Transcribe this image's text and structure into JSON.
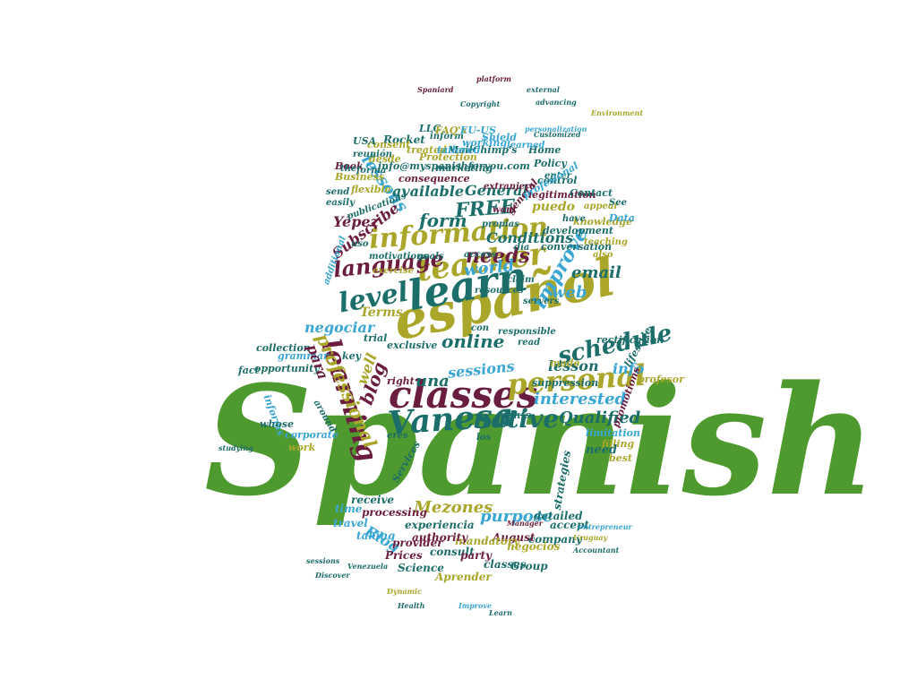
{
  "cloud": {
    "palette": {
      "green": "#4f9a2e",
      "olive": "#a9a62a",
      "teal": "#1c6e6a",
      "maroon": "#6b1d3f",
      "sky": "#3aa6d3"
    },
    "shape": "person silhouette (head + shoulders)",
    "words": [
      {
        "text": "Spanish",
        "color": "green"
      },
      {
        "text": "español",
        "color": "olive"
      },
      {
        "text": "learn",
        "color": "teal"
      },
      {
        "text": "teacher",
        "color": "olive"
      },
      {
        "text": "classes",
        "color": "maroon"
      },
      {
        "text": "information",
        "color": "olive"
      },
      {
        "text": "Vanesa",
        "color": "teal"
      },
      {
        "text": "personal",
        "color": "olive"
      },
      {
        "text": "learning",
        "color": "maroon"
      },
      {
        "text": "level",
        "color": "teal"
      },
      {
        "text": "native",
        "color": "teal"
      },
      {
        "text": "language",
        "color": "maroon"
      },
      {
        "text": "schedule",
        "color": "teal"
      },
      {
        "text": "improve",
        "color": "sky"
      },
      {
        "text": "needs",
        "color": "maroon"
      },
      {
        "text": "FREE",
        "color": "teal"
      },
      {
        "text": "form",
        "color": "teal"
      },
      {
        "text": "professional",
        "color": "olive"
      },
      {
        "text": "online",
        "color": "teal"
      },
      {
        "text": "web",
        "color": "sky"
      },
      {
        "text": "email",
        "color": "teal"
      },
      {
        "text": "world",
        "color": "sky"
      },
      {
        "text": "lessons",
        "color": "sky"
      },
      {
        "text": "Subscribe",
        "color": "maroon"
      },
      {
        "text": "General",
        "color": "teal"
      },
      {
        "text": "Conditions",
        "color": "teal"
      },
      {
        "text": "available",
        "color": "teal"
      },
      {
        "text": "Terms",
        "color": "olive"
      },
      {
        "text": "puedo",
        "color": "olive"
      },
      {
        "text": "blog",
        "color": "maroon"
      },
      {
        "text": "Qualified",
        "color": "teal"
      },
      {
        "text": "sessions",
        "color": "sky"
      },
      {
        "text": "interested",
        "color": "sky"
      },
      {
        "text": "lesson",
        "color": "teal"
      },
      {
        "text": "negociar",
        "color": "sky"
      },
      {
        "text": "Mezones",
        "color": "olive"
      },
      {
        "text": "purpose",
        "color": "sky"
      },
      {
        "text": "Blog",
        "color": "sky"
      },
      {
        "text": "una",
        "color": "teal"
      },
      {
        "text": "info",
        "color": "sky"
      },
      {
        "text": "Yépez",
        "color": "maroon"
      },
      {
        "text": "Rocket",
        "color": "teal"
      },
      {
        "text": "MailChimp's",
        "color": "teal"
      },
      {
        "text": "Shield",
        "color": "sky"
      },
      {
        "text": "Protection",
        "color": "olive"
      },
      {
        "text": "consequence",
        "color": "maroon"
      },
      {
        "text": "info@myspanishforyou.com",
        "color": "teal"
      },
      {
        "text": "knowledge",
        "color": "olive"
      },
      {
        "text": "development",
        "color": "teal"
      },
      {
        "text": "legitimation",
        "color": "maroon"
      },
      {
        "text": "Contact",
        "color": "teal"
      },
      {
        "text": "conversation",
        "color": "teal"
      },
      {
        "text": "treated",
        "color": "olive"
      },
      {
        "text": "tailored",
        "color": "sky"
      },
      {
        "text": "Policy",
        "color": "teal"
      },
      {
        "text": "control",
        "color": "teal"
      },
      {
        "text": "Data",
        "color": "sky"
      },
      {
        "text": "motivations",
        "color": "teal"
      },
      {
        "text": "goals",
        "color": "teal"
      },
      {
        "text": "exercise",
        "color": "olive"
      },
      {
        "text": "resources",
        "color": "teal"
      },
      {
        "text": "claim",
        "color": "teal"
      },
      {
        "text": "servers",
        "color": "teal"
      },
      {
        "text": "Home",
        "color": "teal"
      },
      {
        "text": "marketing",
        "color": "teal"
      },
      {
        "text": "publications",
        "color": "teal"
      },
      {
        "text": "flexible",
        "color": "olive"
      },
      {
        "text": "Business",
        "color": "olive"
      },
      {
        "text": "Book",
        "color": "maroon"
      },
      {
        "text": "send",
        "color": "teal"
      },
      {
        "text": "easily",
        "color": "teal"
      },
      {
        "text": "access",
        "color": "teal"
      },
      {
        "text": "additional",
        "color": "sky"
      },
      {
        "text": "grammar",
        "color": "sky"
      },
      {
        "text": "collection",
        "color": "teal"
      },
      {
        "text": "opportunity",
        "color": "teal"
      },
      {
        "text": "exclusive",
        "color": "teal"
      },
      {
        "text": "trial",
        "color": "teal"
      },
      {
        "text": "rectification",
        "color": "teal"
      },
      {
        "text": "lifestyle",
        "color": "teal"
      },
      {
        "text": "profesor",
        "color": "olive"
      },
      {
        "text": "promotions",
        "color": "maroon"
      },
      {
        "text": "suppression",
        "color": "teal"
      },
      {
        "text": "limitation",
        "color": "sky"
      },
      {
        "text": "filling",
        "color": "olive"
      },
      {
        "text": "strategies",
        "color": "teal"
      },
      {
        "text": "need",
        "color": "teal"
      },
      {
        "text": "detailed",
        "color": "teal"
      },
      {
        "text": "company",
        "color": "teal"
      },
      {
        "text": "accept",
        "color": "teal"
      },
      {
        "text": "negocios",
        "color": "olive"
      },
      {
        "text": "August",
        "color": "maroon"
      },
      {
        "text": "Group",
        "color": "teal"
      },
      {
        "text": "mandatory",
        "color": "olive"
      },
      {
        "text": "classes",
        "color": "teal"
      },
      {
        "text": "Aprender",
        "color": "olive"
      },
      {
        "text": "experiencia",
        "color": "teal"
      },
      {
        "text": "authority",
        "color": "maroon"
      },
      {
        "text": "provider",
        "color": "maroon"
      },
      {
        "text": "consult",
        "color": "teal"
      },
      {
        "text": "party",
        "color": "maroon"
      },
      {
        "text": "Prices",
        "color": "maroon"
      },
      {
        "text": "Science",
        "color": "teal"
      },
      {
        "text": "processing",
        "color": "maroon"
      },
      {
        "text": "travel",
        "color": "sky"
      },
      {
        "text": "receive",
        "color": "teal"
      },
      {
        "text": "time",
        "color": "sky"
      },
      {
        "text": "taking",
        "color": "sky"
      },
      {
        "text": "corporate",
        "color": "sky"
      },
      {
        "text": "work",
        "color": "olive"
      },
      {
        "text": "informs",
        "color": "sky"
      },
      {
        "text": "whose",
        "color": "teal"
      },
      {
        "text": "right",
        "color": "maroon"
      },
      {
        "text": "rights",
        "color": "teal"
      },
      {
        "text": "Services",
        "color": "teal"
      },
      {
        "text": "best",
        "color": "olive"
      },
      {
        "text": "made",
        "color": "olive"
      },
      {
        "text": "fact",
        "color": "teal"
      },
      {
        "text": "key",
        "color": "teal"
      },
      {
        "text": "well",
        "color": "olive"
      },
      {
        "text": "para",
        "color": "maroon"
      },
      {
        "text": "desde",
        "color": "olive"
      },
      {
        "text": "consent",
        "color": "olive"
      },
      {
        "text": "reunión",
        "color": "teal"
      },
      {
        "text": "forma",
        "color": "teal"
      },
      {
        "text": "the",
        "color": "teal"
      },
      {
        "text": "working",
        "color": "sky"
      },
      {
        "text": "inform",
        "color": "teal"
      },
      {
        "text": "USA",
        "color": "teal"
      },
      {
        "text": "LLC",
        "color": "teal"
      },
      {
        "text": "FAQ's",
        "color": "olive"
      },
      {
        "text": "EU-US",
        "color": "sky"
      },
      {
        "text": "learned",
        "color": "sky"
      },
      {
        "text": "extranjero",
        "color": "maroon"
      },
      {
        "text": "general",
        "color": "maroon"
      },
      {
        "text": "appear",
        "color": "olive"
      },
      {
        "text": "teaching",
        "color": "olive"
      },
      {
        "text": "See",
        "color": "teal"
      },
      {
        "text": "have",
        "color": "teal"
      },
      {
        "text": "also",
        "color": "olive"
      },
      {
        "text": "uso",
        "color": "teal"
      },
      {
        "text": "día",
        "color": "teal"
      },
      {
        "text": "enter",
        "color": "teal"
      },
      {
        "text": "read",
        "color": "teal"
      },
      {
        "text": "con",
        "color": "teal"
      },
      {
        "text": "responsible",
        "color": "teal"
      },
      {
        "text": "eres",
        "color": "teal"
      },
      {
        "text": "los",
        "color": "teal"
      },
      {
        "text": "around",
        "color": "teal"
      },
      {
        "text": "want",
        "color": "maroon"
      },
      {
        "text": "propias",
        "color": "teal"
      },
      {
        "text": "Customized",
        "color": "teal"
      },
      {
        "text": "profesional",
        "color": "sky"
      },
      {
        "text": "Copyright",
        "color": "teal"
      },
      {
        "text": "Spaniard",
        "color": "maroon"
      },
      {
        "text": "Environment",
        "color": "olive"
      },
      {
        "text": "Improve",
        "color": "sky"
      },
      {
        "text": "Discover",
        "color": "teal"
      },
      {
        "text": "Venezuela",
        "color": "teal"
      },
      {
        "text": "Health",
        "color": "teal"
      },
      {
        "text": "Dynamic",
        "color": "olive"
      },
      {
        "text": "Accountant",
        "color": "teal"
      },
      {
        "text": "Manager",
        "color": "maroon"
      },
      {
        "text": "Learn",
        "color": "teal"
      },
      {
        "text": "Uruguay",
        "color": "olive"
      },
      {
        "text": "sessions",
        "color": "teal"
      },
      {
        "text": "entrepreneur",
        "color": "sky"
      },
      {
        "text": "studying",
        "color": "teal"
      },
      {
        "text": "personalization",
        "color": "sky"
      },
      {
        "text": "external",
        "color": "teal"
      },
      {
        "text": "platform",
        "color": "maroon"
      },
      {
        "text": "advancing",
        "color": "teal"
      }
    ]
  }
}
